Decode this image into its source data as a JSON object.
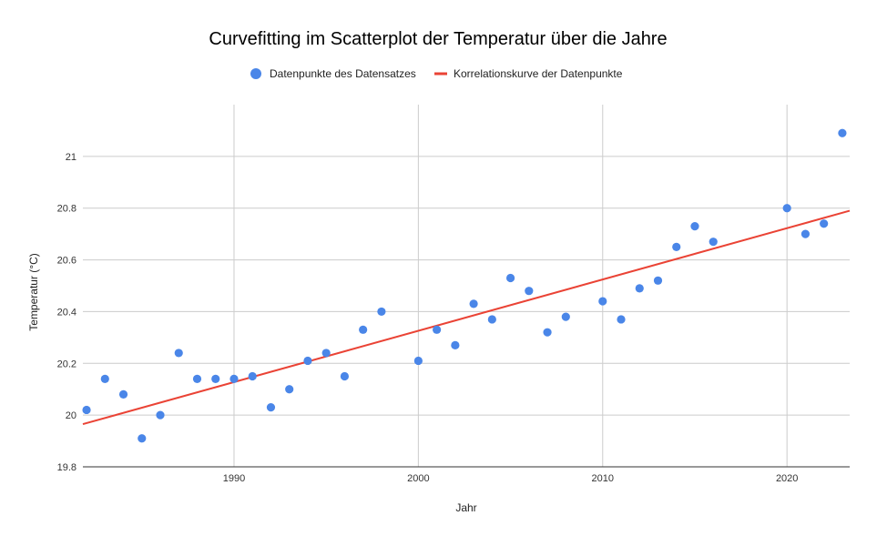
{
  "chart_data": {
    "type": "scatter",
    "title": "Curvefitting im Scatterplot der Temperatur über die Jahre",
    "xlabel": "Jahr",
    "ylabel": "Temperatur (°C)",
    "xlim": [
      1981.8,
      2023.4
    ],
    "ylim": [
      19.8,
      21.2
    ],
    "xticks": [
      1990,
      2000,
      2010,
      2020
    ],
    "yticks": [
      19.8,
      20,
      20.2,
      20.4,
      20.6,
      20.8,
      21
    ],
    "xtick_labels": [
      "1990",
      "2000",
      "2010",
      "2020"
    ],
    "ytick_labels": [
      "19.8",
      "20",
      "20.2",
      "20.4",
      "20.6",
      "20.8",
      "21"
    ],
    "grid": true,
    "legend_position": "top",
    "series": [
      {
        "name": "Datenpunkte des Datensatzes",
        "kind": "points",
        "color": "#4a86e8",
        "x": [
          1982,
          1983,
          1984,
          1985,
          1986,
          1987,
          1988,
          1989,
          1990,
          1991,
          1992,
          1993,
          1994,
          1995,
          1996,
          1997,
          1998,
          2000,
          2001,
          2002,
          2003,
          2004,
          2005,
          2006,
          2007,
          2008,
          2010,
          2011,
          2012,
          2013,
          2014,
          2015,
          2016,
          2020,
          2021,
          2022,
          2023
        ],
        "y": [
          20.02,
          20.14,
          20.08,
          19.91,
          20.0,
          20.24,
          20.14,
          20.14,
          20.14,
          20.15,
          20.03,
          20.1,
          20.21,
          20.24,
          20.15,
          20.33,
          20.4,
          20.21,
          20.33,
          20.27,
          20.43,
          20.37,
          20.53,
          20.48,
          20.32,
          20.38,
          20.44,
          20.37,
          20.49,
          20.52,
          20.65,
          20.73,
          20.67,
          20.8,
          20.7,
          20.74,
          21.09
        ]
      },
      {
        "name": "Korrelationskurve der Datenpunkte",
        "kind": "line",
        "color": "#ea4335",
        "x": [
          1981.8,
          2023.4
        ],
        "y": [
          19.965,
          20.79
        ]
      }
    ]
  }
}
